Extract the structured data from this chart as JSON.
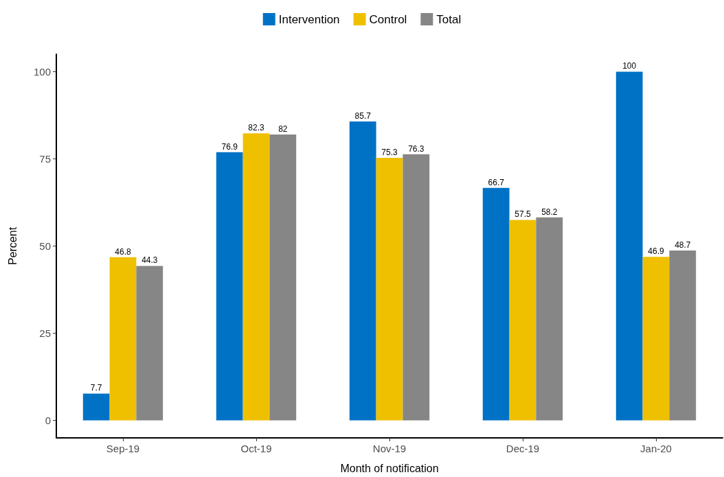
{
  "chart_data": {
    "type": "bar",
    "xlabel": "Month of notification",
    "ylabel": "Percent",
    "categories": [
      "Sep-19",
      "Oct-19",
      "Nov-19",
      "Dec-19",
      "Jan-20"
    ],
    "series": [
      {
        "name": "Intervention",
        "color": "#0072c6",
        "values": [
          7.7,
          76.9,
          85.7,
          66.7,
          100
        ]
      },
      {
        "name": "Control",
        "color": "#efc000",
        "values": [
          46.8,
          82.3,
          75.3,
          57.5,
          46.9
        ]
      },
      {
        "name": "Total",
        "color": "#868686",
        "values": [
          44.3,
          82,
          76.3,
          58.2,
          48.7
        ]
      }
    ],
    "ylim": [
      -5,
      105
    ],
    "yticks": [
      0,
      25,
      50,
      75,
      100
    ],
    "grid": false,
    "legend": "top",
    "data_labels": true
  }
}
